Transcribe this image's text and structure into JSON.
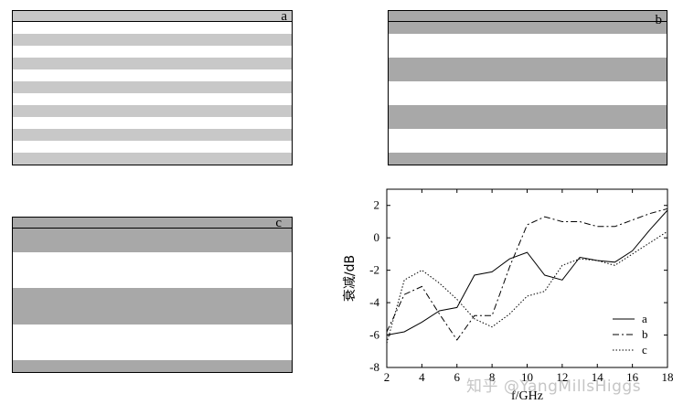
{
  "colors": {
    "light": "#c8c8c8",
    "dark": "#a8a8a8",
    "white": "#ffffff",
    "ink": "#000000"
  },
  "panels": [
    {
      "label": "a",
      "pattern": [
        "light",
        "white",
        "light",
        "white",
        "light",
        "white",
        "light",
        "white",
        "light",
        "white",
        "light",
        "white",
        "light"
      ]
    },
    {
      "label": "b",
      "pattern": [
        "dark",
        "dark",
        "white",
        "white",
        "dark",
        "dark",
        "white",
        "white",
        "dark",
        "dark",
        "white",
        "white",
        "dark"
      ]
    },
    {
      "label": "c",
      "pattern": [
        "dark",
        "dark",
        "dark",
        "white",
        "white",
        "white",
        "dark",
        "dark",
        "dark",
        "white",
        "white",
        "white",
        "dark"
      ]
    }
  ],
  "chart_data": {
    "type": "line",
    "xlabel": "f/GHz",
    "ylabel": "衰减/dB",
    "xlim": [
      2,
      18
    ],
    "ylim": [
      -8,
      3
    ],
    "xticks": [
      2,
      4,
      6,
      8,
      10,
      12,
      14,
      16,
      18
    ],
    "yticks": [
      -8,
      -6,
      -4,
      -2,
      0,
      2
    ],
    "legend_position": "bottom-right",
    "series": [
      {
        "name": "a",
        "dash": "solid",
        "x": [
          2,
          3,
          4,
          5,
          6,
          7,
          8,
          9,
          10,
          11,
          12,
          13,
          14,
          15,
          16,
          17,
          18
        ],
        "y": [
          -6.0,
          -5.8,
          -5.2,
          -4.5,
          -4.3,
          -2.3,
          -2.1,
          -1.3,
          -0.9,
          -2.3,
          -2.6,
          -1.2,
          -1.4,
          -1.5,
          -0.8,
          0.5,
          1.7
        ]
      },
      {
        "name": "b",
        "dash": "dashdot",
        "x": [
          2,
          3,
          4,
          5,
          6,
          7,
          8,
          9,
          10,
          11,
          12,
          13,
          14,
          15,
          16,
          17,
          18
        ],
        "y": [
          -5.8,
          -3.5,
          -3.0,
          -4.7,
          -6.3,
          -4.8,
          -4.8,
          -1.8,
          0.8,
          1.3,
          1.0,
          1.0,
          0.7,
          0.7,
          1.1,
          1.5,
          1.8
        ]
      },
      {
        "name": "c",
        "dash": "dotted",
        "x": [
          2,
          3,
          4,
          5,
          6,
          7,
          8,
          9,
          10,
          11,
          12,
          13,
          14,
          15,
          16,
          17,
          18
        ],
        "y": [
          -6.5,
          -2.6,
          -2.0,
          -2.8,
          -3.8,
          -5.0,
          -5.5,
          -4.7,
          -3.6,
          -3.3,
          -1.7,
          -1.3,
          -1.4,
          -1.7,
          -1.0,
          -0.3,
          0.4
        ]
      }
    ]
  },
  "watermark": "知乎 @YangMillsHiggs"
}
